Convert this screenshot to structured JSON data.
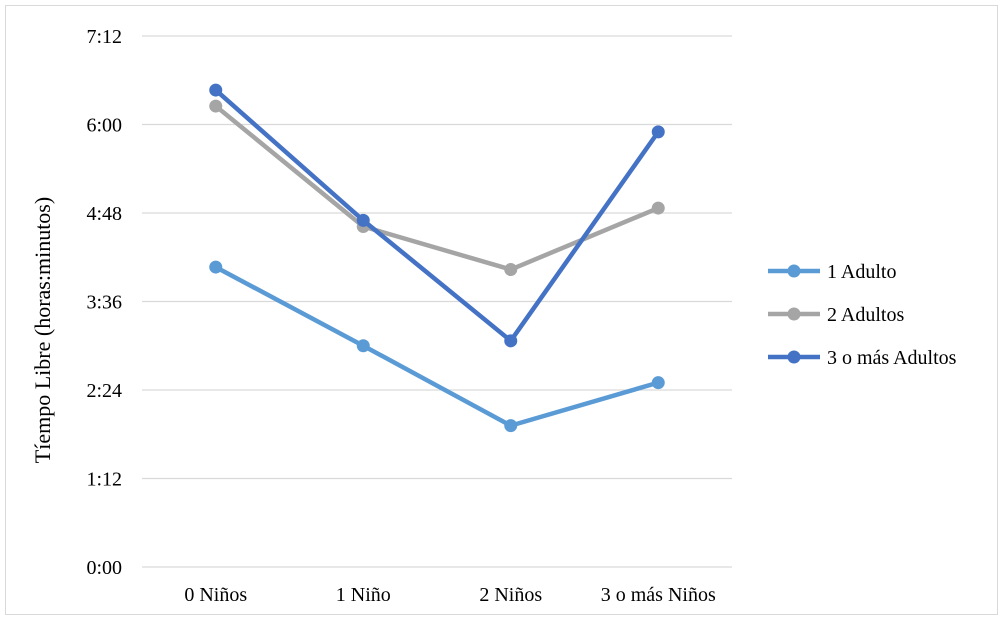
{
  "chart_data": {
    "type": "line",
    "title": "",
    "xlabel": "",
    "ylabel": "Tíempo Libre (horas:minutos)",
    "categories": [
      "0 Niños",
      "1 Niño",
      "2 Niños",
      "3 o más Niños"
    ],
    "y_unit": "minutes",
    "ylim": [
      0,
      432
    ],
    "y_ticks": [
      0,
      72,
      144,
      216,
      288,
      360,
      432
    ],
    "y_tick_labels": [
      "0:00",
      "1:12",
      "2:24",
      "3:36",
      "4:48",
      "6:00",
      "7:12"
    ],
    "grid": true,
    "legend_position": "right",
    "series": [
      {
        "name": "1 Adulto",
        "color": "#5b9bd5",
        "values": [
          244,
          180,
          115,
          150
        ]
      },
      {
        "name": "2 Adultos",
        "color": "#a5a5a5",
        "values": [
          375,
          277,
          242,
          292
        ]
      },
      {
        "name": "3 o más Adultos",
        "color": "#4472c4",
        "values": [
          388,
          282,
          184,
          354
        ]
      }
    ]
  }
}
